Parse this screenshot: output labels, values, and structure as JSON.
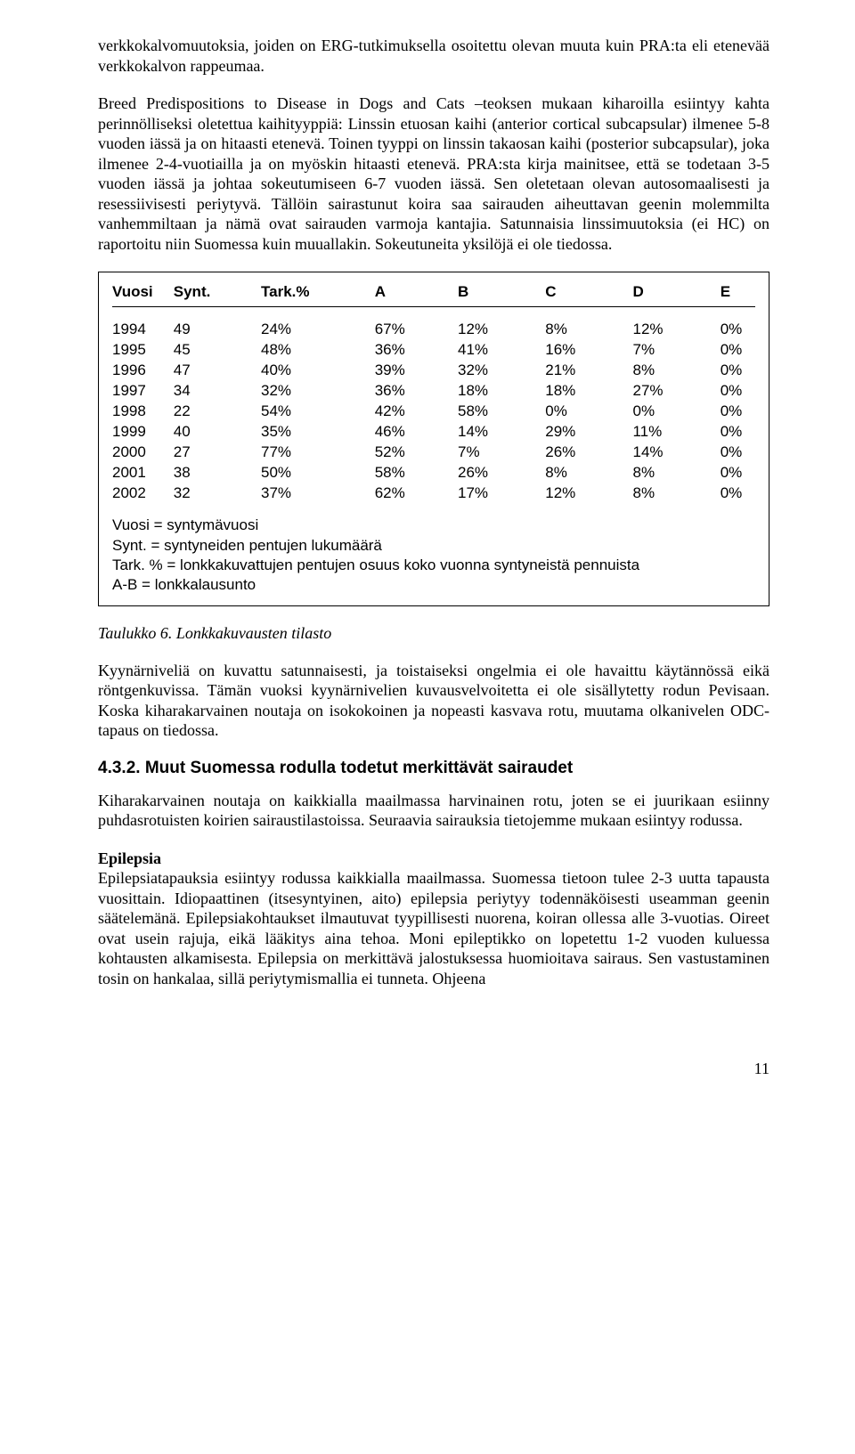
{
  "para1": "verkkokalvomuutoksia, joiden on ERG-tutkimuksella osoitettu olevan muuta kuin PRA:ta eli etenevää verkkokalvon rappeumaa.",
  "para2": "Breed Predispositions to Disease in Dogs and Cats –teoksen mukaan kiharoilla esiintyy kahta perinnölliseksi oletettua kaihityyppiä: Linssin etuosan kaihi (anterior cortical subcapsular) ilmenee 5-8 vuoden iässä ja on hitaasti etenevä. Toinen tyyppi on linssin takaosan kaihi (posterior subcapsular), joka ilmenee 2-4-vuotiailla ja on myöskin hitaasti etenevä. PRA:sta kirja mainitsee, että se todetaan 3-5 vuoden iässä ja johtaa sokeutumiseen 6-7 vuoden iässä. Sen oletetaan olevan autosomaalisesti ja resessiivisesti periytyvä. Tällöin sairastunut koira saa sairauden aiheuttavan geenin molemmilta vanhemmiltaan ja nämä ovat sairauden varmoja kantajia. Satunnaisia linssimuutoksia (ei HC) on raportoitu niin Suomessa kuin muuallakin. Sokeutuneita yksilöjä ei ole tiedossa.",
  "table": {
    "headers": {
      "vuosi": "Vuosi",
      "synt": "Synt.",
      "tark": "Tark.%",
      "a": "A",
      "b": "B",
      "c": "C",
      "d": "D",
      "e": "E"
    },
    "rows": [
      {
        "vuosi": "1994",
        "synt": "49",
        "tark": "24%",
        "a": "67%",
        "b": "12%",
        "c": "8%",
        "d": "12%",
        "e": "0%"
      },
      {
        "vuosi": "1995",
        "synt": "45",
        "tark": "48%",
        "a": "36%",
        "b": "41%",
        "c": "16%",
        "d": "7%",
        "e": "0%"
      },
      {
        "vuosi": "1996",
        "synt": "47",
        "tark": "40%",
        "a": "39%",
        "b": "32%",
        "c": "21%",
        "d": "8%",
        "e": "0%"
      },
      {
        "vuosi": "1997",
        "synt": "34",
        "tark": "32%",
        "a": "36%",
        "b": "18%",
        "c": "18%",
        "d": "27%",
        "e": "0%"
      },
      {
        "vuosi": "1998",
        "synt": "22",
        "tark": "54%",
        "a": "42%",
        "b": "58%",
        "c": "0%",
        "d": "0%",
        "e": "0%"
      },
      {
        "vuosi": "1999",
        "synt": "40",
        "tark": "35%",
        "a": "46%",
        "b": "14%",
        "c": "29%",
        "d": "11%",
        "e": "0%"
      },
      {
        "vuosi": "2000",
        "synt": "27",
        "tark": "77%",
        "a": "52%",
        "b": "7%",
        "c": "26%",
        "d": "14%",
        "e": "0%"
      },
      {
        "vuosi": "2001",
        "synt": "38",
        "tark": "50%",
        "a": "58%",
        "b": "26%",
        "c": "8%",
        "d": "8%",
        "e": "0%"
      },
      {
        "vuosi": "2002",
        "synt": "32",
        "tark": "37%",
        "a": "62%",
        "b": "17%",
        "c": "12%",
        "d": "8%",
        "e": "0%"
      }
    ],
    "notes": {
      "l1": "Vuosi = syntymävuosi",
      "l2": "Synt. = syntyneiden pentujen lukumäärä",
      "l3": "Tark. % = lonkkakuvattujen pentujen osuus koko vuonna syntyneistä pennuista",
      "l4": "A-B = lonkkalausunto"
    }
  },
  "caption": "Taulukko 6. Lonkkakuvausten tilasto",
  "para3": "Kyynärniveliä on kuvattu satunnaisesti, ja toistaiseksi ongelmia ei ole havaittu käytännössä eikä röntgenkuvissa. Tämän vuoksi kyynärnivelien kuvausvelvoitetta ei ole sisällytetty rodun Pevisaan. Koska kiharakarvainen noutaja on isokokoinen ja nopeasti kasvava rotu, muutama olkanivelen ODC-tapaus on tiedossa.",
  "h3": "4.3.2. Muut Suomessa rodulla todetut merkittävät sairaudet",
  "para4": "Kiharakarvainen noutaja on kaikkialla maailmassa harvinainen rotu, joten se ei juurikaan esiinny puhdasrotuisten koirien sairaustilastoissa. Seuraavia sairauksia tietojemme mukaan esiintyy rodussa.",
  "epilepsia_title": "Epilepsia",
  "para5": "Epilepsiatapauksia esiintyy rodussa kaikkialla maailmassa. Suomessa tietoon tulee 2-3 uutta tapausta vuosittain. Idiopaattinen (itsesyntyinen, aito) epilepsia periytyy todennäköisesti useamman geenin säätelemänä. Epilepsiakohtaukset ilmautuvat tyypillisesti nuorena, koiran ollessa alle 3-vuotias. Oireet ovat usein rajuja, eikä lääkitys aina tehoa. Moni epileptikko on lopetettu 1-2 vuoden kuluessa kohtausten alkamisesta. Epilepsia on merkittävä jalostuksessa huomioitava sairaus. Sen vastustaminen tosin on hankalaa, sillä periytymismallia ei tunneta. Ohjeena",
  "page_num": "11"
}
